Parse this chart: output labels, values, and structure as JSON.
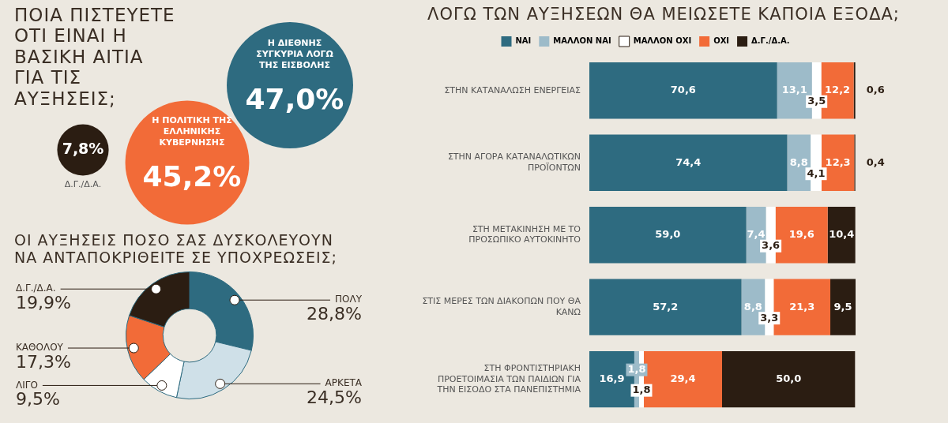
{
  "chart_data": [
    {
      "type": "other",
      "title": "ΠΟΙΑ ΠΙΣΤΕΥΕΤΕ ΟΤΙ ΕΙΝΑΙ Η ΒΑΣΙΚΗ ΑΙΤΙΑ ΓΙΑ ΤΙΣ ΑΥΞΗΣΕΙΣ;",
      "categories": [
        "Η ΔΙΕΘΝΗΣ ΣΥΓΚΥΡΙΑ ΛΟΓΩ ΤΗΣ ΕΙΣΒΟΛΗΣ",
        "Η ΠΟΛΙΤΙΚΗ ΤΗΣ ΕΛΛΗΝΙΚΗΣ ΚΥΒΕΡΝΗΣΗΣ",
        "Δ.Γ./Δ.Α."
      ],
      "values": [
        47.0,
        45.2,
        7.8
      ],
      "value_labels": [
        "47,0%",
        "45,2%",
        "7,8%"
      ],
      "colors": [
        "#2e6b80",
        "#f26b38",
        "#2b1d12"
      ]
    },
    {
      "type": "donut",
      "title": "ΟΙ ΑΥΞΗΣΕΙΣ ΠΟΣΟ ΣΑΣ ΔΥΣΚΟΛΕΥΟΥΝ ΝΑ ΑΝΤΑΠΟΚΡΙΘΕΙΤΕ ΣΕ ΥΠΟΧΡΕΩΣΕΙΣ;",
      "categories": [
        "ΠΟΛΥ",
        "ΑΡΚΕΤΑ",
        "ΛΙΓΟ",
        "ΚΑΘΟΛΟΥ",
        "Δ.Γ./Δ.Α."
      ],
      "values": [
        28.8,
        24.5,
        9.5,
        17.3,
        19.9
      ],
      "value_labels": [
        "28,8%",
        "24,5%",
        "9,5%",
        "17,3%",
        "19,9%"
      ],
      "colors": [
        "#2e6b80",
        "#cfe0e8",
        "#ffffff",
        "#f26b38",
        "#2b1d12"
      ]
    },
    {
      "type": "bar",
      "orientation": "horizontal",
      "stacked": true,
      "title": "ΛΟΓΩ ΤΩΝ ΑΥΞΗΣΕΩΝ ΘΑ ΜΕΙΩΣΕΤΕ ΚΑΠΟΙΑ ΕΞΟΔΑ;",
      "legend": "top",
      "categories": [
        "ΣΤΗΝ ΚΑΤΑΝΑΛΩΣΗ ΕΝΕΡΓΕΙΑΣ",
        "ΣΤΗΝ ΑΓΟΡΑ ΚΑΤΑΝΑΛΩΤΙΚΩΝ ΠΡΟΪΟΝΤΩΝ",
        "ΣΤΗ ΜΕΤΑΚΙΝΗΣΗ ΜΕ ΤΟ ΠΡΟΣΩΠΙΚΟ ΑΥΤΟΚΙΝΗΤΟ",
        "ΣΤΙΣ ΜΕΡΕΣ ΤΩΝ ΔΙΑΚΟΠΩΝ ΠΟΥ ΘΑ ΚΑΝΩ",
        "ΣΤΗ ΦΡΟΝΤΙΣΤΗΡΙΑΚΗ ΠΡΟΕΤΟΙΜΑΣΙΑ ΤΩΝ ΠΑΙΔΙΩΝ ΓΙΑ ΤΗΝ ΕΙΣΟΔΟ ΣΤΑ ΠΑΝΕΠΙΣΤΗΜΙΑ"
      ],
      "series": [
        {
          "name": "ΝΑΙ",
          "color": "#2e6b80",
          "values": [
            70.6,
            74.4,
            59.0,
            57.2,
            16.9
          ],
          "value_labels": [
            "70,6",
            "74,4",
            "59,0",
            "57,2",
            "16,9"
          ]
        },
        {
          "name": "ΜΑΛΛΟΝ ΝΑΙ",
          "color": "#9dbbc9",
          "values": [
            13.1,
            8.8,
            7.4,
            8.8,
            1.8
          ],
          "value_labels": [
            "13,1",
            "8,8",
            "7,4",
            "8,8",
            "1,8"
          ]
        },
        {
          "name": "ΜΑΛΛΟΝ ΟΧΙ",
          "color": "#ffffff",
          "values": [
            3.5,
            4.1,
            3.6,
            3.3,
            1.8
          ],
          "value_labels": [
            "3,5",
            "4,1",
            "3,6",
            "3,3",
            "1,8"
          ]
        },
        {
          "name": "ΟΧΙ",
          "color": "#f26b38",
          "values": [
            12.2,
            12.3,
            19.6,
            21.3,
            29.4
          ],
          "value_labels": [
            "12,2",
            "12,3",
            "19,6",
            "21,3",
            "29,4"
          ]
        },
        {
          "name": "Δ.Γ./Δ.Α.",
          "color": "#2b1d12",
          "values": [
            0.6,
            0.4,
            10.4,
            9.5,
            50.0
          ],
          "value_labels": [
            "0,6",
            "0,4",
            "10,4",
            "9,5",
            "50,0"
          ]
        }
      ]
    }
  ]
}
